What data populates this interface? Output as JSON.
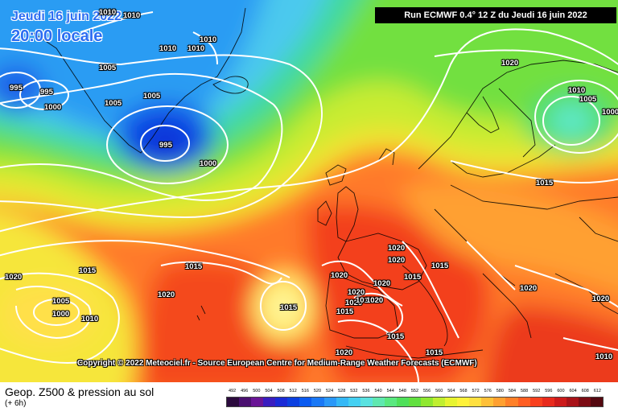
{
  "header": {
    "date": "Jeudi 16 juin 2022",
    "time": "20:00 locale",
    "run": "Run ECMWF 0.4° 12 Z du Jeudi 16 juin 2022"
  },
  "copyright": "Copyright © 2022 Meteociel.fr - Source European Centre for Medium-Range Weather Forecasts (ECMWF)",
  "footer": {
    "title": "Geop. Z500 & pression au sol",
    "subtitle": "(+ 6h)"
  },
  "legend": {
    "ticks": [
      "492",
      "496",
      "500",
      "504",
      "508",
      "512",
      "516",
      "520",
      "524",
      "528",
      "532",
      "536",
      "540",
      "544",
      "548",
      "552",
      "556",
      "560",
      "564",
      "568",
      "572",
      "576",
      "580",
      "584",
      "588",
      "592",
      "596",
      "600",
      "604",
      "608",
      "612"
    ],
    "colors": [
      "#2b0a3d",
      "#4b1070",
      "#6a1596",
      "#3a1dbf",
      "#1a2ad6",
      "#0b40e0",
      "#0a5bf0",
      "#1a78f5",
      "#2a98f8",
      "#35b8f6",
      "#45d0f2",
      "#5ae2e0",
      "#60e8b0",
      "#5ae880",
      "#4fe05a",
      "#62e040",
      "#90e830",
      "#c0ef30",
      "#e7f430",
      "#fff23a",
      "#ffe040",
      "#ffc038",
      "#ffa030",
      "#ff8028",
      "#ff5e22",
      "#f8401e",
      "#e82a1c",
      "#cc1a1a",
      "#a81218",
      "#7c0c14",
      "#540810"
    ]
  },
  "isobar_labels": [
    {
      "text": "1010"
    },
    {
      "text": "1010"
    },
    {
      "text": "1005"
    },
    {
      "text": "1010"
    },
    {
      "text": "1010"
    },
    {
      "text": "1010"
    },
    {
      "text": "995"
    },
    {
      "text": "995"
    },
    {
      "text": "1000"
    },
    {
      "text": "1005"
    },
    {
      "text": "1005"
    },
    {
      "text": "995"
    },
    {
      "text": "1000"
    },
    {
      "text": "1020"
    },
    {
      "text": "1010"
    },
    {
      "text": "1005"
    },
    {
      "text": "1000"
    },
    {
      "text": "1015"
    },
    {
      "text": "1020"
    },
    {
      "text": "1015"
    },
    {
      "text": "1015"
    },
    {
      "text": "1020"
    },
    {
      "text": "1005"
    },
    {
      "text": "1000"
    },
    {
      "text": "1010"
    },
    {
      "text": "1020"
    },
    {
      "text": "1015"
    },
    {
      "text": "1020"
    },
    {
      "text": "1020"
    },
    {
      "text": "1020"
    },
    {
      "text": "1015"
    },
    {
      "text": "1015"
    },
    {
      "text": "1020"
    },
    {
      "text": "1020"
    },
    {
      "text": "1020"
    },
    {
      "text": "1020"
    },
    {
      "text": "1010"
    },
    {
      "text": "1020"
    },
    {
      "text": "1015"
    },
    {
      "text": "1015"
    },
    {
      "text": "1015"
    },
    {
      "text": "1020"
    },
    {
      "text": "1020"
    },
    {
      "text": "1010"
    }
  ]
}
